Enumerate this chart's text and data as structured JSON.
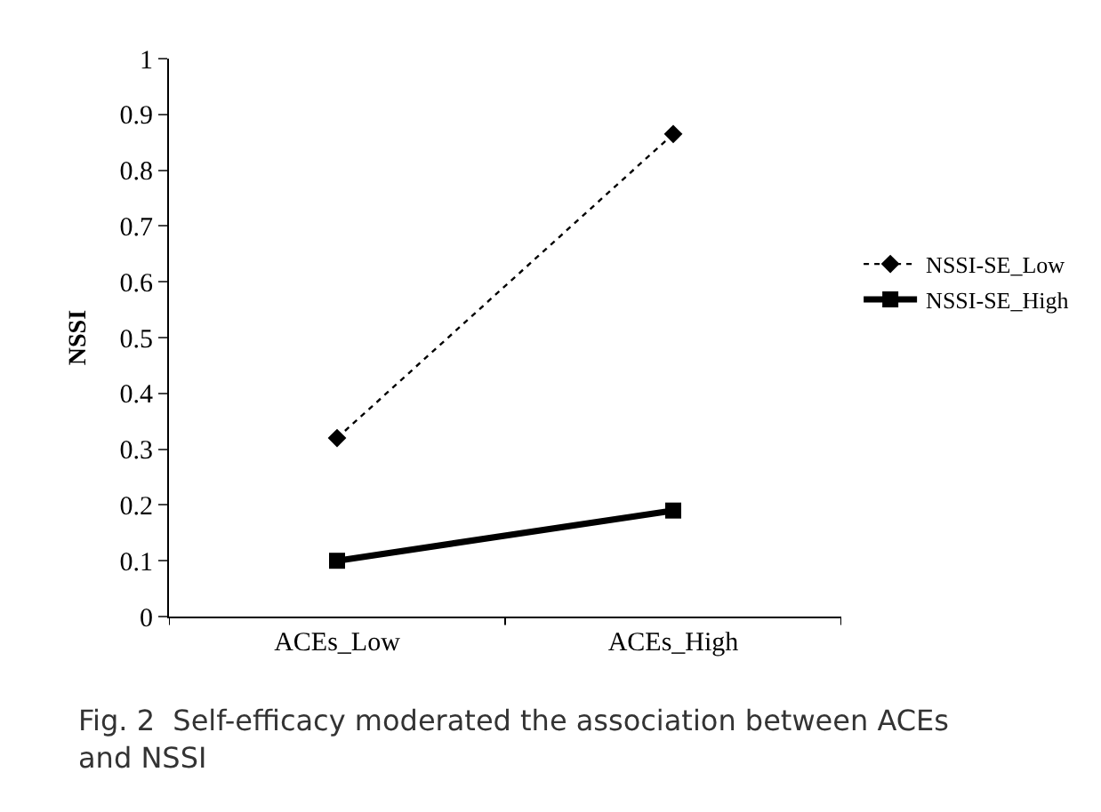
{
  "chart_data": {
    "type": "line",
    "ylabel": "NSSI",
    "categories": [
      "ACEs_Low",
      "ACEs_High"
    ],
    "series": [
      {
        "name": "NSSI-SE_Low",
        "color": "#000000",
        "values": [
          0.32,
          0.865
        ],
        "marker": "diamond",
        "line_style": "dotted"
      },
      {
        "name": "NSSI-SE_High",
        "color": "#000000",
        "values": [
          0.1,
          0.19
        ],
        "marker": "square",
        "line_style": "solid"
      }
    ],
    "ylim": [
      0,
      1
    ],
    "yticks": [
      0,
      0.1,
      0.2,
      0.3,
      0.4,
      0.5,
      0.6,
      0.7,
      0.8,
      0.9,
      1
    ],
    "legend": "right",
    "annotations": [
      "Fig. 2  Self-efficacy moderated the association between ACEs and NSSI"
    ]
  }
}
